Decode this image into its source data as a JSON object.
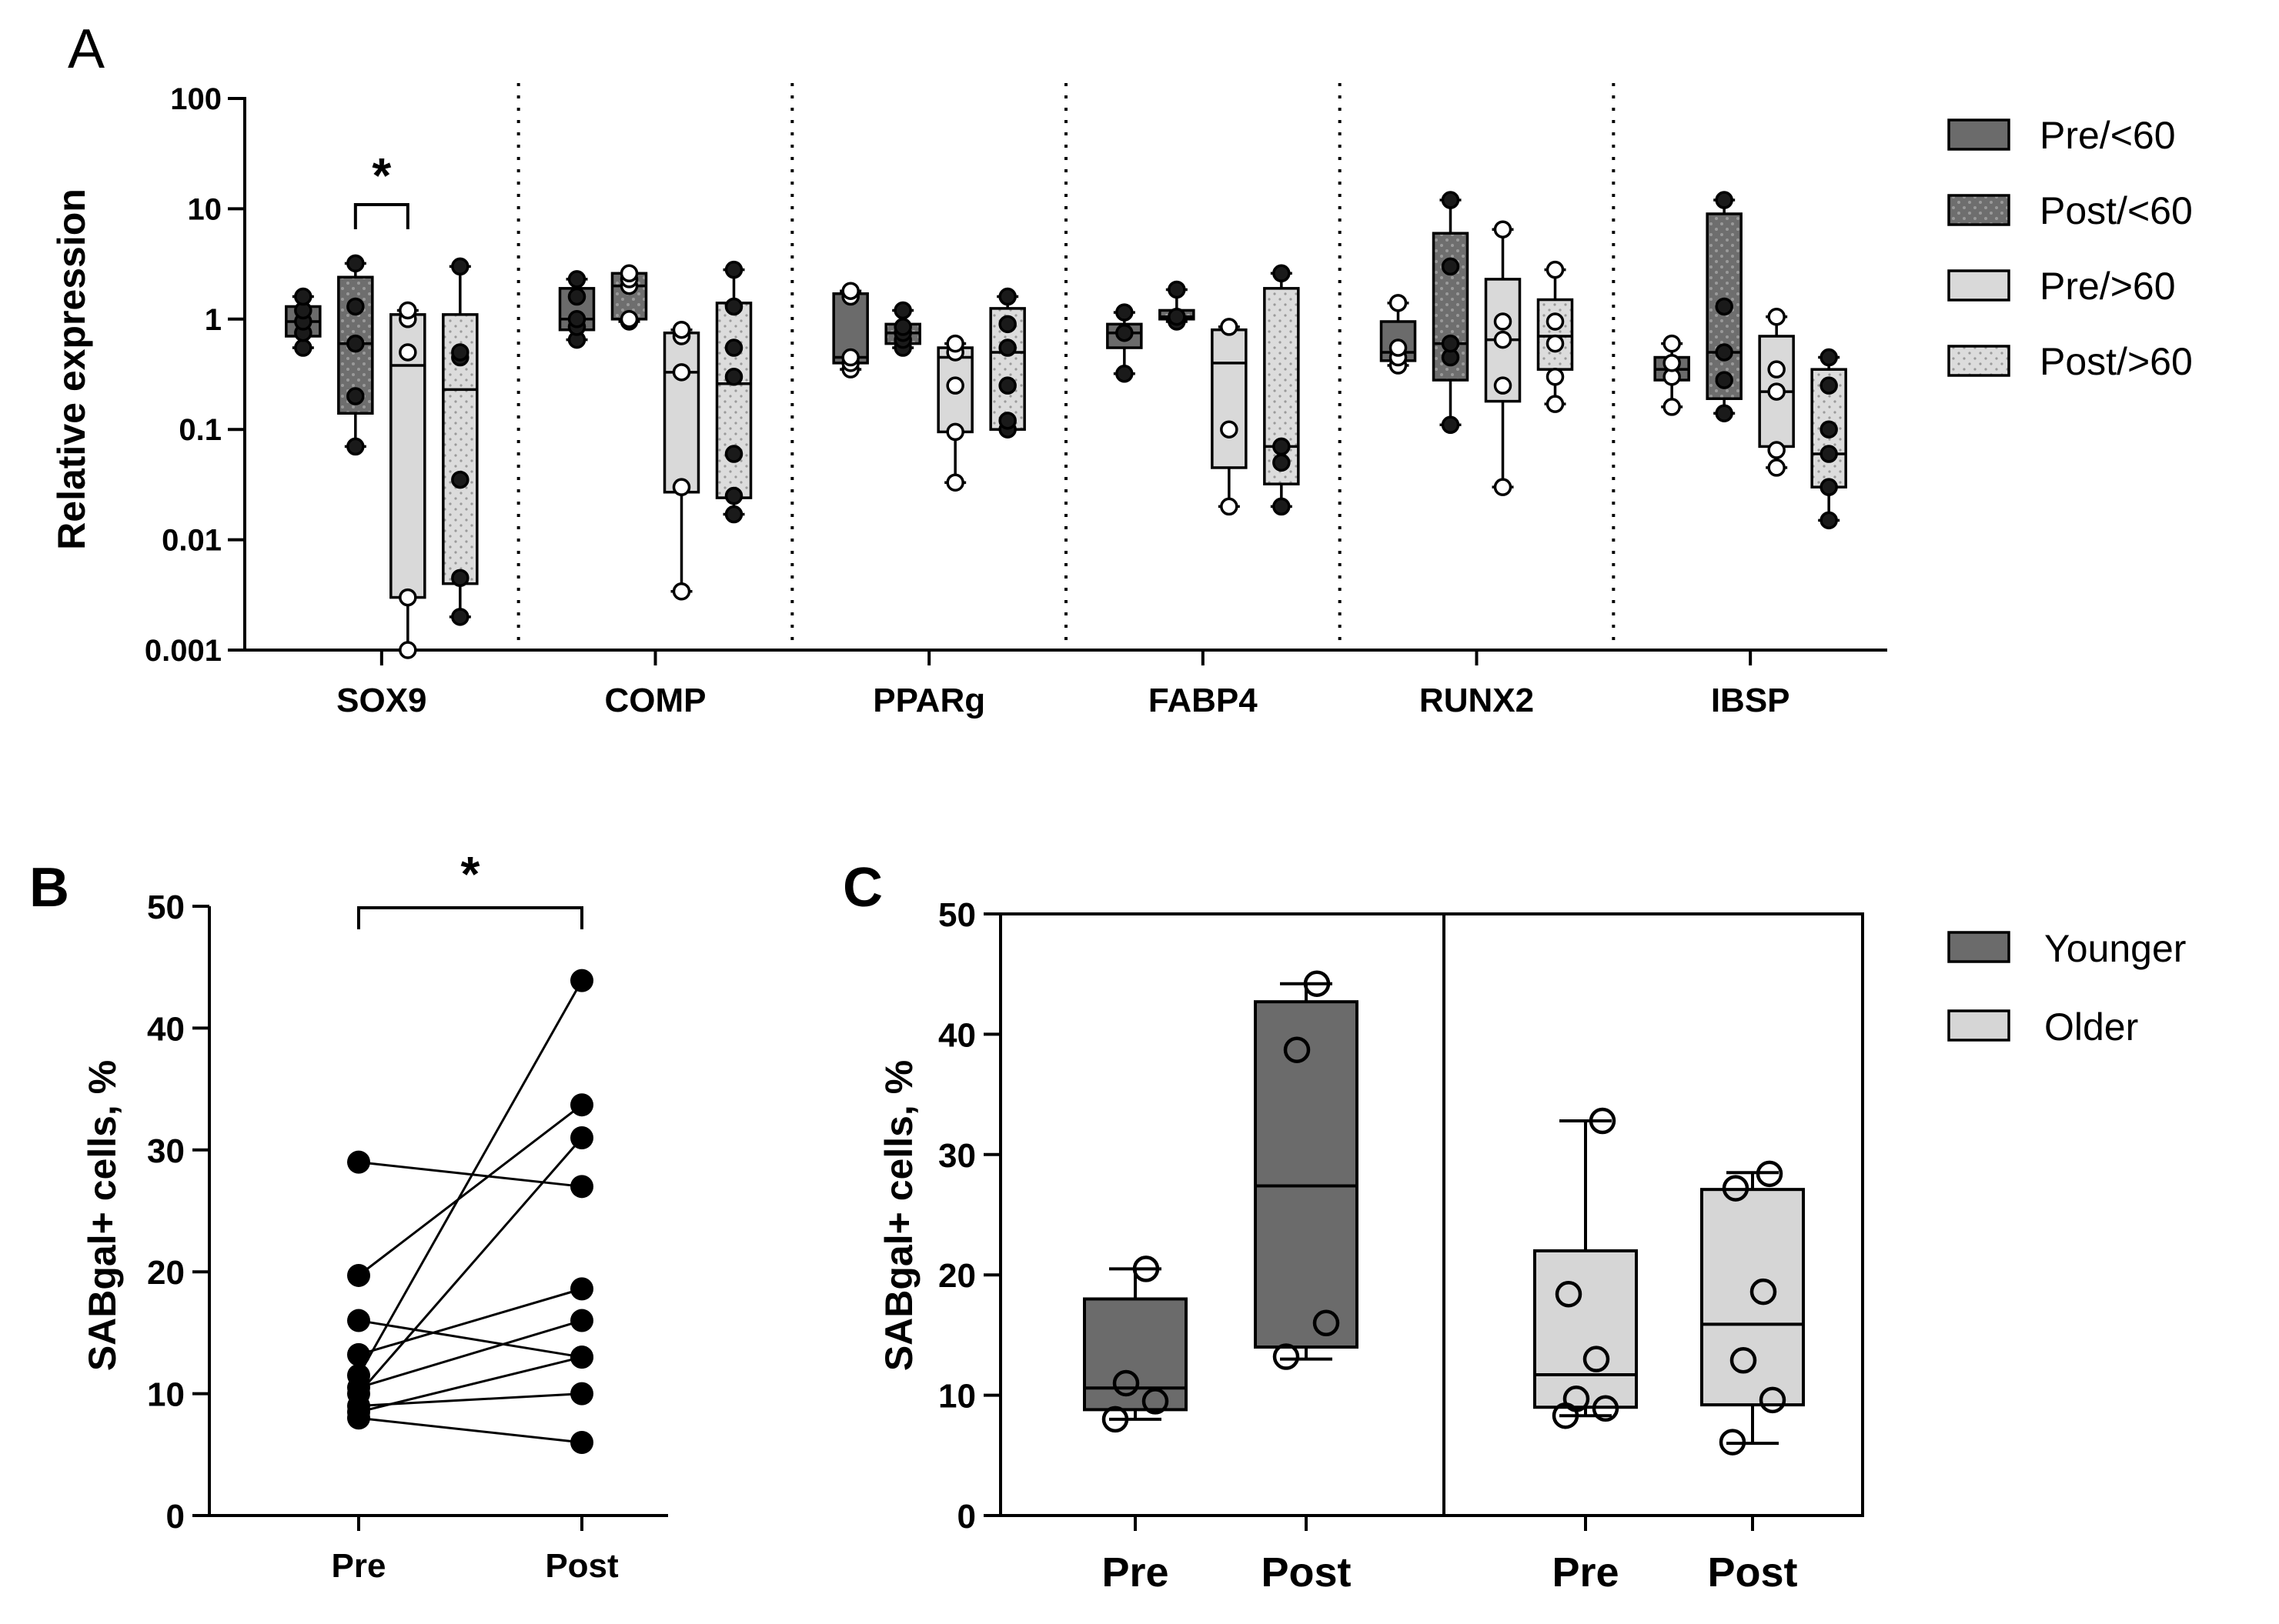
{
  "chart_data": [
    {
      "panel": "A",
      "type": "box",
      "ylabel": "Relative expression",
      "yscale": "log",
      "ylim": [
        0.001,
        100
      ],
      "yticks": [
        {
          "value": 100,
          "label": "100"
        },
        {
          "value": 10,
          "label": "10"
        },
        {
          "value": 1,
          "label": "1"
        },
        {
          "value": 0.1,
          "label": "0.1"
        },
        {
          "value": 0.01,
          "label": "0.01"
        },
        {
          "value": 0.001,
          "label": "0.001"
        }
      ],
      "categories": [
        "SOX9",
        "COMP",
        "PPARg",
        "FABP4",
        "RUNX2",
        "IBSP"
      ],
      "legend": [
        {
          "label": "Pre/<60",
          "color": "#6b6b6b",
          "pattern": "solid"
        },
        {
          "label": "Post/<60",
          "color": "#6b6b6b",
          "pattern": "dots"
        },
        {
          "label": "Pre/>60",
          "color": "#d9d9d9",
          "pattern": "solid"
        },
        {
          "label": "Post/>60",
          "color": "#d9d9d9",
          "pattern": "dots"
        }
      ],
      "groups": [
        {
          "category": "SOX9",
          "boxes": [
            {
              "series": 0,
              "min": 0.55,
              "q1": 0.7,
              "median": 0.95,
              "q3": 1.3,
              "max": 1.6,
              "points": [
                0.55,
                0.75,
                0.95,
                1.2,
                1.6
              ],
              "open": false
            },
            {
              "series": 1,
              "min": 0.07,
              "q1": 0.14,
              "median": 0.6,
              "q3": 2.4,
              "max": 3.2,
              "points": [
                0.07,
                0.2,
                0.6,
                1.3,
                3.2
              ],
              "open": false
            },
            {
              "series": 2,
              "min": 0.001,
              "q1": 0.003,
              "median": 0.38,
              "q3": 1.1,
              "max": 1.2,
              "points": [
                0.001,
                0.003,
                0.5,
                1.0,
                1.2
              ],
              "open": true
            },
            {
              "series": 3,
              "min": 0.002,
              "q1": 0.004,
              "median": 0.23,
              "q3": 1.1,
              "max": 3.0,
              "points": [
                0.002,
                0.0045,
                0.035,
                0.45,
                0.5,
                3.0
              ],
              "open": false
            }
          ]
        },
        {
          "category": "COMP",
          "boxes": [
            {
              "series": 0,
              "min": 0.65,
              "q1": 0.8,
              "median": 1.0,
              "q3": 1.9,
              "max": 2.3,
              "points": [
                0.65,
                0.85,
                1.0,
                1.6,
                2.3
              ],
              "open": false
            },
            {
              "series": 1,
              "min": 0.95,
              "q1": 1.0,
              "median": 2.0,
              "q3": 2.6,
              "max": 2.6,
              "points": [
                0.95,
                1.0,
                2.0,
                2.3,
                2.6
              ],
              "open": true
            },
            {
              "series": 2,
              "min": 0.0034,
              "q1": 0.027,
              "median": 0.33,
              "q3": 0.75,
              "max": 0.8,
              "points": [
                0.0034,
                0.03,
                0.33,
                0.7,
                0.8
              ],
              "open": true
            },
            {
              "series": 3,
              "min": 0.017,
              "q1": 0.024,
              "median": 0.26,
              "q3": 1.4,
              "max": 2.8,
              "points": [
                0.017,
                0.025,
                0.06,
                0.3,
                0.55,
                1.3,
                2.8
              ],
              "open": false
            }
          ]
        },
        {
          "category": "PPARg",
          "boxes": [
            {
              "series": 0,
              "min": 0.35,
              "q1": 0.4,
              "median": 0.45,
              "q3": 1.7,
              "max": 1.8,
              "points": [
                0.35,
                0.4,
                0.45,
                1.6,
                1.8
              ],
              "open": true
            },
            {
              "series": 1,
              "min": 0.55,
              "q1": 0.6,
              "median": 0.75,
              "q3": 0.9,
              "max": 1.2,
              "points": [
                0.55,
                0.65,
                0.75,
                0.85,
                1.2
              ],
              "open": false
            },
            {
              "series": 2,
              "min": 0.033,
              "q1": 0.095,
              "median": 0.45,
              "q3": 0.55,
              "max": 0.6,
              "points": [
                0.033,
                0.095,
                0.25,
                0.5,
                0.6
              ],
              "open": true
            },
            {
              "series": 3,
              "min": 0.1,
              "q1": 0.1,
              "median": 0.5,
              "q3": 1.25,
              "max": 1.6,
              "points": [
                0.1,
                0.12,
                0.25,
                0.55,
                0.9,
                1.6
              ],
              "open": false
            }
          ]
        },
        {
          "category": "FABP4",
          "boxes": [
            {
              "series": 0,
              "min": 0.32,
              "q1": 0.55,
              "median": 0.75,
              "q3": 0.9,
              "max": 1.15,
              "points": [
                0.32,
                0.75,
                1.15
              ],
              "open": false
            },
            {
              "series": 1,
              "min": 0.95,
              "q1": 1.0,
              "median": 1.05,
              "q3": 1.2,
              "max": 1.85,
              "points": [
                0.95,
                1.05,
                1.85
              ],
              "open": false
            },
            {
              "series": 2,
              "min": 0.02,
              "q1": 0.045,
              "median": 0.4,
              "q3": 0.8,
              "max": 0.85,
              "points": [
                0.02,
                0.1,
                0.85
              ],
              "open": true
            },
            {
              "series": 3,
              "min": 0.02,
              "q1": 0.032,
              "median": 0.07,
              "q3": 1.9,
              "max": 2.6,
              "points": [
                0.02,
                0.05,
                0.07,
                2.6
              ],
              "open": false
            }
          ]
        },
        {
          "category": "RUNX2",
          "boxes": [
            {
              "series": 0,
              "min": 0.38,
              "q1": 0.42,
              "median": 0.5,
              "q3": 0.95,
              "max": 1.4,
              "points": [
                0.38,
                0.45,
                0.55,
                1.4
              ],
              "open": true
            },
            {
              "series": 1,
              "min": 0.11,
              "q1": 0.28,
              "median": 0.6,
              "q3": 6.0,
              "max": 12.0,
              "points": [
                0.11,
                0.45,
                0.6,
                3.0,
                12.0
              ],
              "open": false
            },
            {
              "series": 2,
              "min": 0.03,
              "q1": 0.18,
              "median": 0.65,
              "q3": 2.3,
              "max": 6.5,
              "points": [
                0.03,
                0.25,
                0.65,
                0.95,
                6.5
              ],
              "open": true
            },
            {
              "series": 3,
              "min": 0.17,
              "q1": 0.35,
              "median": 0.7,
              "q3": 1.5,
              "max": 2.8,
              "points": [
                0.17,
                0.3,
                0.6,
                0.95,
                2.8
              ],
              "open": true
            }
          ]
        },
        {
          "category": "IBSP",
          "boxes": [
            {
              "series": 0,
              "min": 0.16,
              "q1": 0.28,
              "median": 0.35,
              "q3": 0.45,
              "max": 0.6,
              "points": [
                0.16,
                0.3,
                0.4,
                0.6
              ],
              "open": true
            },
            {
              "series": 1,
              "min": 0.14,
              "q1": 0.19,
              "median": 0.5,
              "q3": 9.0,
              "max": 12.0,
              "points": [
                0.14,
                0.28,
                0.5,
                1.3,
                12.0
              ],
              "open": false
            },
            {
              "series": 2,
              "min": 0.045,
              "q1": 0.07,
              "median": 0.22,
              "q3": 0.7,
              "max": 1.05,
              "points": [
                0.045,
                0.065,
                0.22,
                0.35,
                1.05
              ],
              "open": true
            },
            {
              "series": 3,
              "min": 0.015,
              "q1": 0.03,
              "median": 0.06,
              "q3": 0.35,
              "max": 0.45,
              "points": [
                0.015,
                0.03,
                0.06,
                0.1,
                0.25,
                0.45
              ],
              "open": false
            }
          ]
        }
      ],
      "annotation": {
        "label": "*",
        "category": "SOX9",
        "from_series": 1,
        "to_series": 2
      }
    },
    {
      "panel": "B",
      "type": "paired-line",
      "ylabel": "SABgal+ cells, %",
      "ylim": [
        0,
        50
      ],
      "yticks": [
        0,
        10,
        20,
        30,
        40,
        50
      ],
      "categories": [
        "Pre",
        "Post"
      ],
      "pairs": [
        [
          29,
          27
        ],
        [
          19.7,
          33.7
        ],
        [
          16,
          13
        ],
        [
          13.2,
          18.6
        ],
        [
          11.5,
          43.9
        ],
        [
          10.5,
          16
        ],
        [
          10,
          31
        ],
        [
          9,
          10
        ],
        [
          8.5,
          13
        ],
        [
          8,
          6
        ]
      ],
      "annotation": {
        "label": "*"
      }
    },
    {
      "panel": "C",
      "type": "box",
      "ylabel": "SABgal+ cells, %",
      "ylim": [
        0,
        50
      ],
      "yticks": [
        0,
        10,
        20,
        30,
        40,
        50
      ],
      "categories": [
        "Pre",
        "Post",
        "Pre",
        "Post"
      ],
      "legend": [
        {
          "label": "Younger",
          "color": "#6b6b6b"
        },
        {
          "label": "Older",
          "color": "#d6d6d6"
        }
      ],
      "boxes": [
        {
          "group": "Younger",
          "condition": "Pre",
          "min": 8,
          "q1": 8.8,
          "median": 10.6,
          "q3": 18,
          "max": 20.5,
          "points": [
            8,
            9.5,
            11,
            20.5
          ]
        },
        {
          "group": "Younger",
          "condition": "Post",
          "min": 13,
          "q1": 14,
          "median": 27.4,
          "q3": 42.7,
          "max": 44.2,
          "points": [
            13.2,
            16,
            38.7,
            44.2
          ]
        },
        {
          "group": "Older",
          "condition": "Pre",
          "min": 8.3,
          "q1": 9,
          "median": 11.7,
          "q3": 22,
          "max": 32.8,
          "points": [
            8.3,
            8.9,
            9.7,
            13,
            18.4,
            32.8
          ]
        },
        {
          "group": "Older",
          "condition": "Post",
          "min": 6,
          "q1": 9.2,
          "median": 15.9,
          "q3": 27.1,
          "max": 28.5,
          "points": [
            6.1,
            9.6,
            12.9,
            18.6,
            27.2,
            28.4
          ]
        }
      ]
    }
  ]
}
